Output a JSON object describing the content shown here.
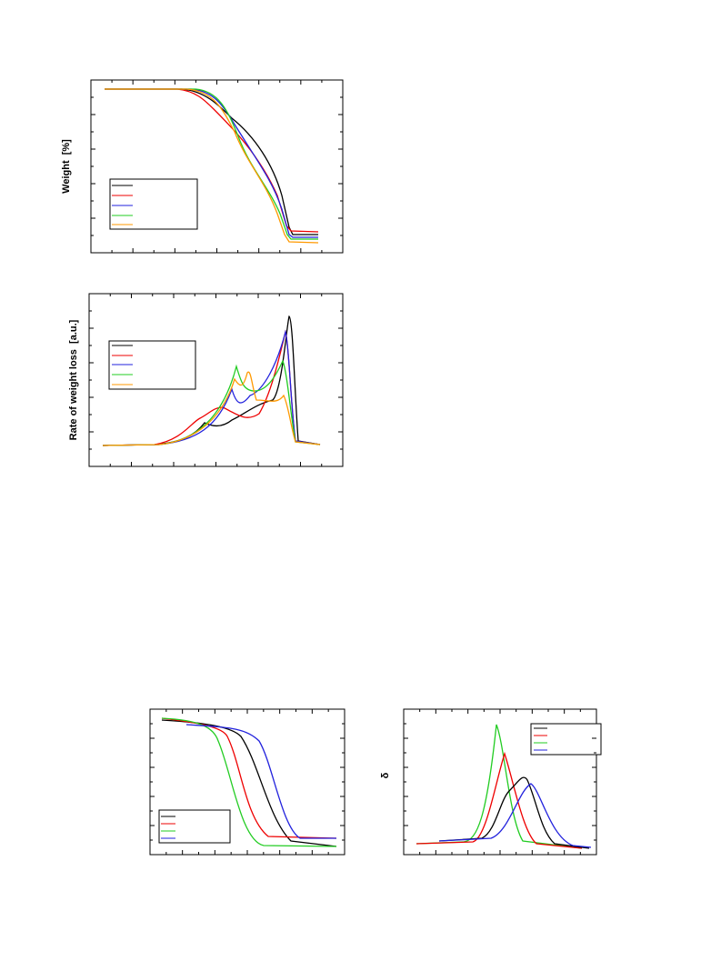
{
  "figure_1": {
    "y_label": "Weight  [%]"
  },
  "figure_2": {
    "y_label": "Rate of weight loss  [a.u.]"
  },
  "figure_4": {
    "y_label": "δ"
  }
}
